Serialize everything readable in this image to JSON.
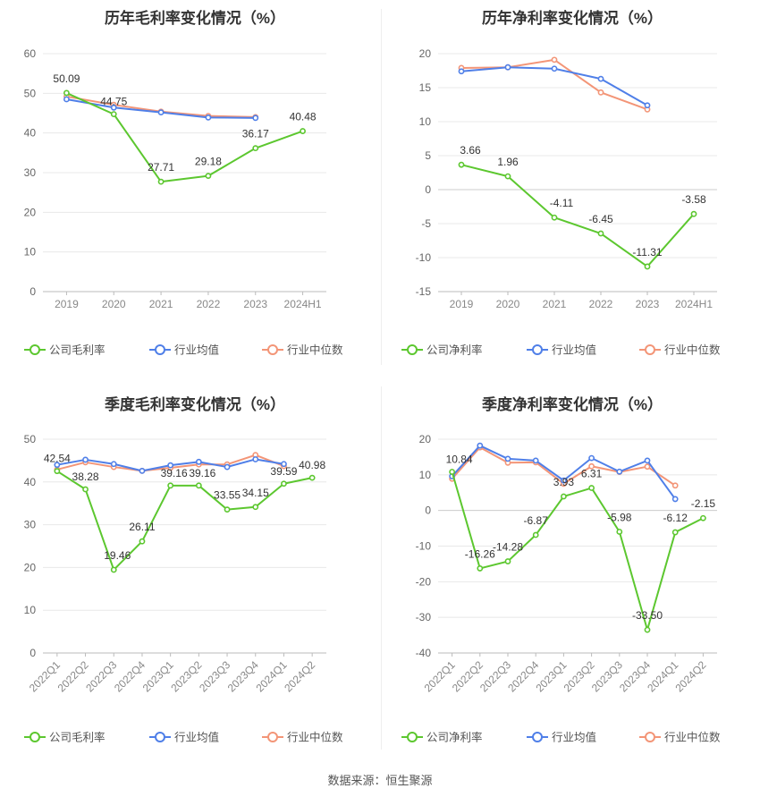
{
  "source": "数据来源：恒生聚源",
  "chart_data": [
    {
      "type": "line",
      "title": "历年毛利率变化情况（%）",
      "categories": [
        "2019",
        "2020",
        "2021",
        "2022",
        "2023",
        "2024H1"
      ],
      "ylim": [
        0,
        60
      ],
      "yticks": [
        0,
        10,
        20,
        30,
        40,
        50,
        60
      ],
      "grid": true,
      "legend_position": "bottom",
      "rotate_labels": false,
      "series": [
        {
          "name": "公司毛利率",
          "color": "#5cc72f",
          "labeled": true,
          "values": [
            50.09,
            44.75,
            27.71,
            29.18,
            36.17,
            40.48
          ]
        },
        {
          "name": "行业均值",
          "color": "#4f7fe8",
          "labeled": false,
          "values": [
            48.5,
            46.4,
            45.2,
            43.9,
            43.8,
            null
          ]
        },
        {
          "name": "行业中位数",
          "color": "#f39577",
          "labeled": false,
          "values": [
            49.2,
            47.1,
            45.4,
            44.3,
            44.0,
            null
          ]
        }
      ]
    },
    {
      "type": "line",
      "title": "历年净利率变化情况（%）",
      "categories": [
        "2019",
        "2020",
        "2021",
        "2022",
        "2023",
        "2024H1"
      ],
      "ylim": [
        -15,
        20
      ],
      "yticks": [
        -15,
        -10,
        -5,
        0,
        5,
        10,
        15,
        20
      ],
      "grid": true,
      "legend_position": "bottom",
      "rotate_labels": false,
      "series": [
        {
          "name": "公司净利率",
          "color": "#5cc72f",
          "labeled": true,
          "values": [
            3.66,
            1.96,
            -4.11,
            -6.45,
            -11.31,
            -3.58
          ]
        },
        {
          "name": "行业均值",
          "color": "#4f7fe8",
          "labeled": false,
          "values": [
            17.4,
            18.0,
            17.8,
            16.3,
            12.4,
            null
          ]
        },
        {
          "name": "行业中位数",
          "color": "#f39577",
          "labeled": false,
          "values": [
            17.9,
            18.0,
            19.1,
            14.3,
            11.8,
            null
          ]
        }
      ]
    },
    {
      "type": "line",
      "title": "季度毛利率变化情况（%）",
      "categories": [
        "2022Q1",
        "2022Q2",
        "2022Q3",
        "2022Q4",
        "2023Q1",
        "2023Q2",
        "2023Q3",
        "2023Q4",
        "2024Q1",
        "2024Q2"
      ],
      "ylim": [
        0,
        50
      ],
      "yticks": [
        0,
        10,
        20,
        30,
        40,
        50
      ],
      "grid": true,
      "legend_position": "bottom",
      "rotate_labels": true,
      "series": [
        {
          "name": "公司毛利率",
          "color": "#5cc72f",
          "labeled": true,
          "values": [
            42.54,
            38.28,
            19.46,
            26.11,
            39.16,
            39.16,
            33.55,
            34.15,
            39.59,
            40.98
          ]
        },
        {
          "name": "行业均值",
          "color": "#4f7fe8",
          "labeled": false,
          "values": [
            44.0,
            45.2,
            44.2,
            42.6,
            43.9,
            44.7,
            43.5,
            45.3,
            44.2,
            null
          ]
        },
        {
          "name": "行业中位数",
          "color": "#f39577",
          "labeled": false,
          "values": [
            42.9,
            44.6,
            43.5,
            42.6,
            43.3,
            44.1,
            44.1,
            46.3,
            43.7,
            null
          ]
        }
      ]
    },
    {
      "type": "line",
      "title": "季度净利率变化情况（%）",
      "categories": [
        "2022Q1",
        "2022Q2",
        "2022Q3",
        "2022Q4",
        "2023Q1",
        "2023Q2",
        "2023Q3",
        "2023Q4",
        "2024Q1",
        "2024Q2"
      ],
      "ylim": [
        -40,
        20
      ],
      "yticks": [
        -40,
        -30,
        -20,
        -10,
        0,
        10,
        20
      ],
      "grid": true,
      "legend_position": "bottom",
      "rotate_labels": true,
      "series": [
        {
          "name": "公司净利率",
          "color": "#5cc72f",
          "labeled": true,
          "values": [
            10.84,
            -16.26,
            -14.28,
            -6.87,
            3.93,
            6.31,
            -5.98,
            -33.5,
            -6.12,
            -2.15
          ]
        },
        {
          "name": "行业均值",
          "color": "#4f7fe8",
          "labeled": false,
          "values": [
            9.6,
            18.2,
            14.5,
            14.0,
            8.4,
            14.7,
            10.9,
            14.0,
            3.2,
            null
          ]
        },
        {
          "name": "行业中位数",
          "color": "#f39577",
          "labeled": false,
          "values": [
            8.9,
            17.7,
            13.4,
            13.5,
            7.5,
            12.4,
            10.8,
            12.3,
            7.0,
            null
          ]
        }
      ]
    }
  ]
}
